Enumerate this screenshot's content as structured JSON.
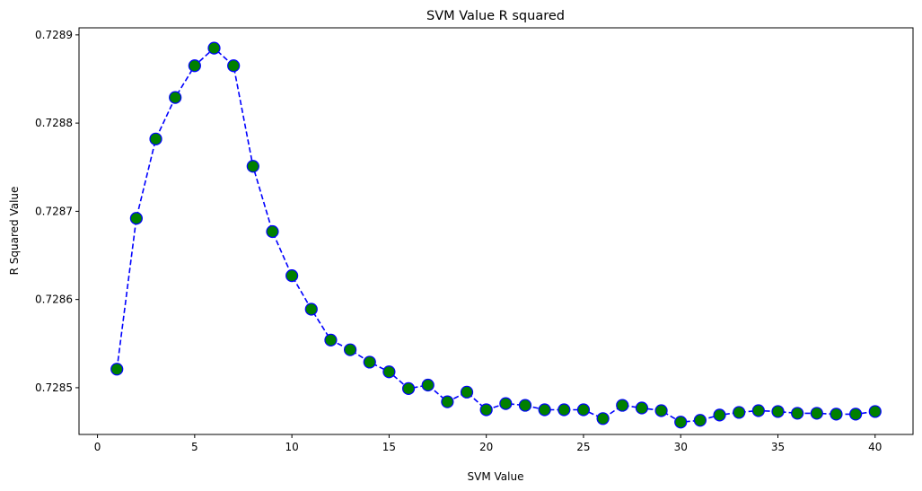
{
  "chart_data": {
    "type": "line",
    "title": "SVM Value R squared",
    "xlabel": "SVM Value",
    "ylabel": "R Squared Value",
    "xlim": [
      -0.95,
      41.95
    ],
    "ylim": [
      0.728447,
      0.728908
    ],
    "xticks": [
      0,
      5,
      10,
      15,
      20,
      25,
      30,
      35,
      40
    ],
    "yticks": [
      0.7285,
      0.7286,
      0.7287,
      0.7288,
      0.7289
    ],
    "grid": false,
    "legend": "none",
    "line_color": "#0000ff",
    "line_style": "dashed",
    "marker_face_color": "#008000",
    "marker_edge_color": "#0000ff",
    "series": [
      {
        "x": [
          1,
          2,
          3,
          4,
          5,
          6,
          7,
          8,
          9,
          10,
          11,
          12,
          13,
          14,
          15,
          16,
          17,
          18,
          19,
          20,
          21,
          22,
          23,
          24,
          25,
          26,
          27,
          28,
          29,
          30,
          31,
          32,
          33,
          34,
          35,
          36,
          37,
          38,
          39,
          40
        ],
        "values": [
          0.728521,
          0.728692,
          0.728782,
          0.728829,
          0.728865,
          0.728885,
          0.728865,
          0.728751,
          0.728677,
          0.728627,
          0.728589,
          0.728554,
          0.728543,
          0.728529,
          0.728518,
          0.728499,
          0.728503,
          0.728484,
          0.728495,
          0.728475,
          0.728482,
          0.72848,
          0.728475,
          0.728475,
          0.728475,
          0.728465,
          0.72848,
          0.728477,
          0.728474,
          0.728461,
          0.728463,
          0.728469,
          0.728472,
          0.728474,
          0.728473,
          0.728471,
          0.728471,
          0.72847,
          0.72847,
          0.728473
        ]
      }
    ]
  }
}
